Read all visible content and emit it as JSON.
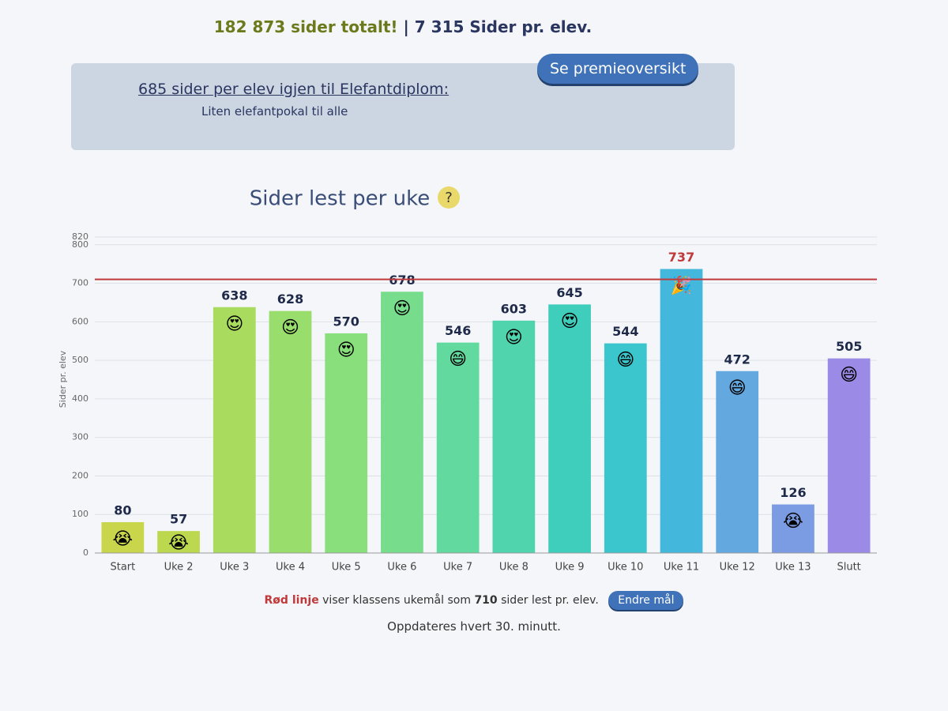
{
  "header": {
    "stats": {
      "total": "182 873 sider totalt!",
      "separator": "|",
      "per_student": "7 315 Sider pr. elev."
    },
    "goal_text": "685 sider per elev igjen til Elefantdiplom:",
    "reward": "Liten elefantpokal til alle",
    "button": "Se premieoversikt"
  },
  "chart_data": {
    "type": "bar",
    "title": "Sider lest per uke",
    "help": "?",
    "y_label": "Sider pr. elev",
    "categories": [
      "Start",
      "Uke 2",
      "Uke 3",
      "Uke 4",
      "Uke 5",
      "Uke 6",
      "Uke 7",
      "Uke 8",
      "Uke 9",
      "Uke 10",
      "Uke 11",
      "Uke 12",
      "Uke 13",
      "Slutt"
    ],
    "values": [
      80,
      57,
      638,
      628,
      570,
      678,
      546,
      603,
      645,
      544,
      737,
      472,
      126,
      505
    ],
    "colors": [
      "#c9d64c",
      "#bcd84e",
      "#a9dc5e",
      "#99de6c",
      "#88df7c",
      "#77dd8c",
      "#62d99e",
      "#50d4ad",
      "#3fcebb",
      "#3ac6cc",
      "#43b7dc",
      "#64a8e0",
      "#7b9be2",
      "#9b8ae6"
    ],
    "icons": [
      "😭",
      "😭",
      "😍",
      "😍",
      "😍",
      "😍",
      "😄",
      "😍",
      "😍",
      "😄",
      "🎉",
      "😄",
      "😭",
      "😄"
    ],
    "ylim": [
      0,
      820
    ],
    "yticks": [
      0,
      100,
      200,
      300,
      400,
      500,
      600,
      700,
      800,
      820
    ],
    "grid": true,
    "goal": 710,
    "goal_color": "#c0393b",
    "note": {
      "highlight": "Rød linje",
      "before": "viser klassens ukemål som",
      "after": "sider lest pr. elev."
    },
    "change_button": "Endre mål",
    "update_text": "Oppdateres hvert 30. minutt."
  }
}
